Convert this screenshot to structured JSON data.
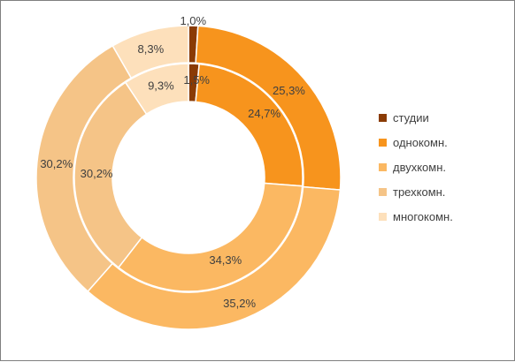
{
  "chart_data": {
    "type": "pie",
    "categories": [
      "студии",
      "однокомн.",
      "двухкомн.",
      "трехкомн.",
      "многокомн."
    ],
    "series": [
      {
        "values": [
          1.0,
          25.3,
          35.2,
          30.2,
          8.3
        ],
        "labels": [
          "1,0%",
          "25,3%",
          "35,2%",
          "30,2%",
          "8,3%"
        ]
      },
      {
        "values": [
          1.5,
          24.7,
          34.3,
          30.2,
          9.3
        ],
        "labels": [
          "1,5%",
          "24,7%",
          "34,3%",
          "30,2%",
          "9,3%"
        ]
      }
    ],
    "colors": [
      "#8a3b05",
      "#f7941d",
      "#fbb862",
      "#f5c487",
      "#fde0bb"
    ],
    "legend_position": "right"
  }
}
